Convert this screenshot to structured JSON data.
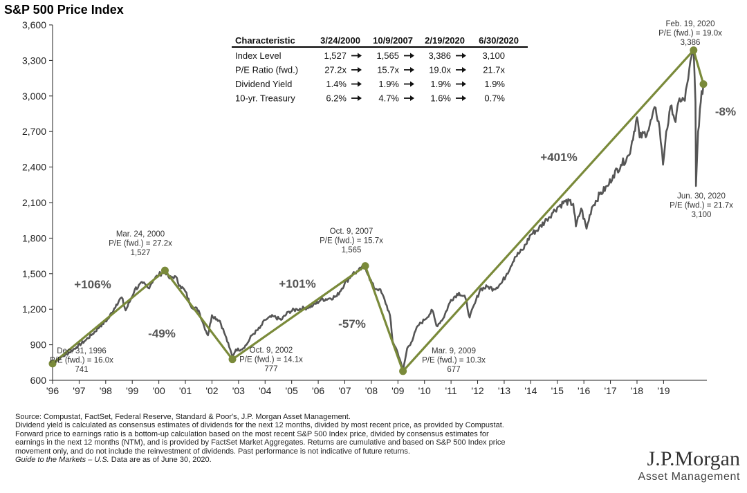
{
  "chart_data": {
    "type": "line",
    "title": "S&P 500 Price Index",
    "ylim": [
      600,
      3600
    ],
    "yticks": [
      600,
      900,
      1200,
      1500,
      1800,
      2100,
      2400,
      2700,
      3000,
      3300,
      3600
    ],
    "ytick_labels": [
      "600",
      "900",
      "1,200",
      "1,500",
      "1,800",
      "2,100",
      "2,400",
      "2,700",
      "3,000",
      "3,300",
      "3,600"
    ],
    "xlim": [
      1996,
      2020.5
    ],
    "xtick_labels": [
      "'96",
      "'97",
      "'98",
      "'99",
      "'00",
      "'01",
      "'02",
      "'03",
      "'04",
      "'05",
      "'06",
      "'07",
      "'08",
      "'09",
      "'10",
      "'11",
      "'12",
      "'13",
      "'14",
      "'15",
      "'16",
      "'17",
      "'18",
      "'19"
    ],
    "grid": false,
    "series": [
      {
        "color": "#555555",
        "points": [
          [
            1996.0,
            741
          ],
          [
            1996.3,
            790
          ],
          [
            1996.6,
            830
          ],
          [
            1996.9,
            880
          ],
          [
            1997.2,
            930
          ],
          [
            1997.5,
            990
          ],
          [
            1997.8,
            1060
          ],
          [
            1998.1,
            1120
          ],
          [
            1998.4,
            1240
          ],
          [
            1998.6,
            1300
          ],
          [
            1998.75,
            1190
          ],
          [
            1998.9,
            1260
          ],
          [
            1999.1,
            1370
          ],
          [
            1999.4,
            1420
          ],
          [
            1999.6,
            1380
          ],
          [
            1999.8,
            1450
          ],
          [
            2000.0,
            1490
          ],
          [
            2000.23,
            1527
          ],
          [
            2000.4,
            1460
          ],
          [
            2000.6,
            1480
          ],
          [
            2000.8,
            1400
          ],
          [
            2001.0,
            1350
          ],
          [
            2001.2,
            1230
          ],
          [
            2001.5,
            1190
          ],
          [
            2001.7,
            1060
          ],
          [
            2001.85,
            980
          ],
          [
            2002.0,
            1150
          ],
          [
            2002.3,
            1100
          ],
          [
            2002.5,
            980
          ],
          [
            2002.65,
            880
          ],
          [
            2002.77,
            800
          ],
          [
            2002.9,
            860
          ],
          [
            2003.1,
            860
          ],
          [
            2003.3,
            900
          ],
          [
            2003.5,
            980
          ],
          [
            2003.8,
            1040
          ],
          [
            2004.0,
            1110
          ],
          [
            2004.3,
            1140
          ],
          [
            2004.6,
            1110
          ],
          [
            2004.9,
            1180
          ],
          [
            2005.2,
            1200
          ],
          [
            2005.5,
            1210
          ],
          [
            2005.8,
            1230
          ],
          [
            2006.1,
            1280
          ],
          [
            2006.4,
            1290
          ],
          [
            2006.7,
            1310
          ],
          [
            2007.0,
            1420
          ],
          [
            2007.3,
            1500
          ],
          [
            2007.5,
            1520
          ],
          [
            2007.77,
            1565
          ],
          [
            2007.9,
            1480
          ],
          [
            2008.1,
            1380
          ],
          [
            2008.3,
            1370
          ],
          [
            2008.5,
            1280
          ],
          [
            2008.7,
            1150
          ],
          [
            2008.8,
            930
          ],
          [
            2008.95,
            860
          ],
          [
            2009.1,
            760
          ],
          [
            2009.19,
            677
          ],
          [
            2009.35,
            870
          ],
          [
            2009.5,
            920
          ],
          [
            2009.75,
            1060
          ],
          [
            2010.0,
            1110
          ],
          [
            2010.3,
            1190
          ],
          [
            2010.45,
            1060
          ],
          [
            2010.7,
            1120
          ],
          [
            2011.0,
            1280
          ],
          [
            2011.3,
            1340
          ],
          [
            2011.55,
            1290
          ],
          [
            2011.7,
            1130
          ],
          [
            2011.9,
            1250
          ],
          [
            2012.1,
            1370
          ],
          [
            2012.4,
            1390
          ],
          [
            2012.6,
            1370
          ],
          [
            2012.9,
            1420
          ],
          [
            2013.1,
            1500
          ],
          [
            2013.4,
            1640
          ],
          [
            2013.7,
            1700
          ],
          [
            2014.0,
            1830
          ],
          [
            2014.3,
            1880
          ],
          [
            2014.6,
            1960
          ],
          [
            2014.8,
            2010
          ],
          [
            2015.0,
            2060
          ],
          [
            2015.3,
            2110
          ],
          [
            2015.6,
            2090
          ],
          [
            2015.7,
            1900
          ],
          [
            2015.9,
            2050
          ],
          [
            2016.1,
            1880
          ],
          [
            2016.3,
            2060
          ],
          [
            2016.6,
            2170
          ],
          [
            2016.9,
            2240
          ],
          [
            2017.1,
            2330
          ],
          [
            2017.4,
            2420
          ],
          [
            2017.7,
            2500
          ],
          [
            2018.0,
            2820
          ],
          [
            2018.1,
            2650
          ],
          [
            2018.4,
            2700
          ],
          [
            2018.7,
            2900
          ],
          [
            2018.85,
            2730
          ],
          [
            2018.98,
            2420
          ],
          [
            2019.1,
            2700
          ],
          [
            2019.3,
            2920
          ],
          [
            2019.45,
            2780
          ],
          [
            2019.6,
            2980
          ],
          [
            2019.8,
            2960
          ],
          [
            2019.97,
            3230
          ],
          [
            2020.13,
            3386
          ],
          [
            2020.2,
            2950
          ],
          [
            2020.22,
            2240
          ],
          [
            2020.3,
            2700
          ],
          [
            2020.4,
            2950
          ],
          [
            2020.5,
            3100
          ]
        ]
      }
    ],
    "trend_lines": {
      "color": "#7a8a3a",
      "points": [
        [
          1996.0,
          741
        ],
        [
          2000.23,
          1527
        ],
        [
          2002.77,
          777
        ],
        [
          2007.77,
          1565
        ],
        [
          2009.19,
          677
        ],
        [
          2020.13,
          3386
        ],
        [
          2020.5,
          3100
        ]
      ]
    },
    "annotations": [
      {
        "lines": [
          "Dec. 31, 1996",
          "P/E (fwd.) = 16.0x",
          "741"
        ]
      },
      {
        "lines": [
          "Mar. 24, 2000",
          "P/E (fwd.) = 27.2x",
          "1,527"
        ]
      },
      {
        "lines": [
          "Oct. 9, 2002",
          "P/E (fwd.) = 14.1x",
          "777"
        ]
      },
      {
        "lines": [
          "Oct. 9, 2007",
          "P/E (fwd.) = 15.7x",
          "1,565"
        ]
      },
      {
        "lines": [
          "Mar. 9, 2009",
          "P/E (fwd.) = 10.3x",
          "677"
        ]
      },
      {
        "lines": [
          "Feb. 19, 2020",
          "P/E (fwd.) = 19.0x",
          "3,386"
        ]
      },
      {
        "lines": [
          "Jun. 30, 2020",
          "P/E (fwd.) = 21.7x",
          "3,100"
        ]
      }
    ],
    "returns": [
      "+106%",
      "-49%",
      "+101%",
      "-57%",
      "+401%",
      "-8%"
    ],
    "table": {
      "headers": [
        "Characteristic",
        "3/24/2000",
        "10/9/2007",
        "2/19/2020",
        "6/30/2020"
      ],
      "rows": [
        [
          "Index Level",
          "1,527",
          "1,565",
          "3,386",
          "3,100"
        ],
        [
          "P/E Ratio (fwd.)",
          "27.2x",
          "15.7x",
          "19.0x",
          "21.7x"
        ],
        [
          "Dividend Yield",
          "1.4%",
          "1.9%",
          "1.9%",
          "1.9%"
        ],
        [
          "10-yr. Treasury",
          "6.2%",
          "4.7%",
          "1.6%",
          "0.7%"
        ]
      ]
    }
  },
  "footnotes": {
    "line1": "Source: Compustat, FactSet, Federal Reserve, Standard & Poor's, J.P. Morgan Asset Management.",
    "line2": "Dividend yield is calculated as consensus estimates of dividends for the next 12 months, divided by most recent price, as provided by Compustat.",
    "line3": "Forward price to earnings ratio is a bottom-up calculation based on the most recent S&P 500 Index price, divided by consensus estimates for",
    "line4": "earnings in the next 12 months (NTM), and is provided by FactSet Market Aggregates. Returns are cumulative and based on S&P 500 Index price",
    "line5": "movement only, and do not include the reinvestment of dividends. Past performance is not indicative of future returns.",
    "line6_italic": "Guide to the Markets – U.S.",
    "line6_rest": " Data are as of June 30, 2020."
  },
  "logo": {
    "name": "J.P.Morgan",
    "subtitle": "Asset Management"
  }
}
